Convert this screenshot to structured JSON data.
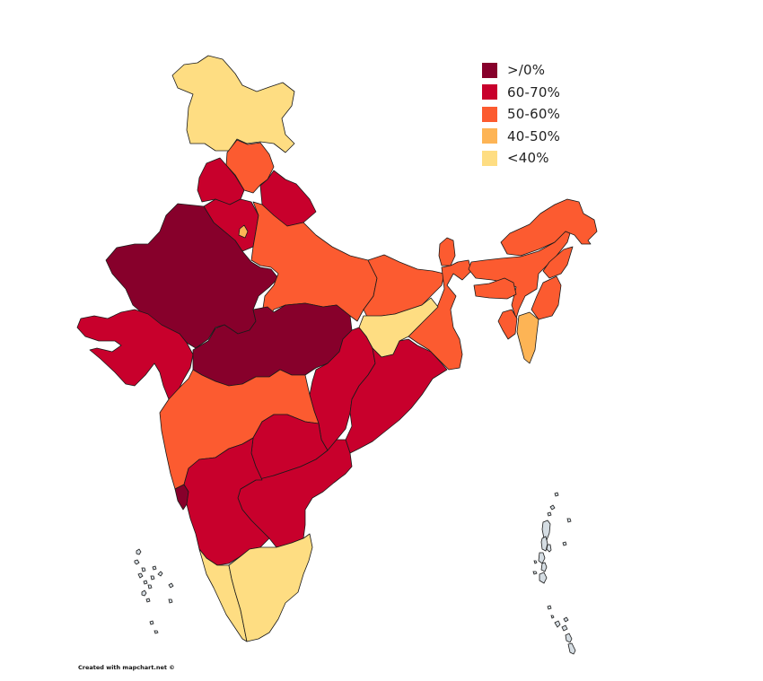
{
  "map": {
    "title": "",
    "colors": {
      "gt70": "#87002b",
      "60_70": "#c8002c",
      "50_60": "#fc5b30",
      "40_50": "#fdb455",
      "lt40": "#fedd82",
      "islands": "#d5dde3"
    },
    "legend": [
      {
        "key": "gt70",
        "label": ">/0%",
        "color": "#87002b"
      },
      {
        "key": "60_70",
        "label": "60-70%",
        "color": "#c8002c"
      },
      {
        "key": "50_60",
        "label": "50-60%",
        "color": "#fc5b30"
      },
      {
        "key": "40_50",
        "label": "40-50%",
        "color": "#fdb455"
      },
      {
        "key": "lt40",
        "label": "<40%",
        "color": "#fedd82"
      }
    ],
    "regions": [
      {
        "name": "Jammu & Kashmir",
        "bucket": "lt40"
      },
      {
        "name": "Himachal Pradesh",
        "bucket": "50_60"
      },
      {
        "name": "Punjab",
        "bucket": "60_70"
      },
      {
        "name": "Uttarakhand",
        "bucket": "60_70"
      },
      {
        "name": "Haryana",
        "bucket": "60_70"
      },
      {
        "name": "Delhi",
        "bucket": "40_50"
      },
      {
        "name": "Rajasthan",
        "bucket": "gt70"
      },
      {
        "name": "Uttar Pradesh",
        "bucket": "50_60"
      },
      {
        "name": "Bihar",
        "bucket": "50_60"
      },
      {
        "name": "Sikkim",
        "bucket": "50_60"
      },
      {
        "name": "Arunachal Pradesh",
        "bucket": "50_60"
      },
      {
        "name": "Assam",
        "bucket": "lt40"
      },
      {
        "name": "Meghalaya",
        "bucket": "50_60"
      },
      {
        "name": "Nagaland",
        "bucket": "50_60"
      },
      {
        "name": "Manipur",
        "bucket": "50_60"
      },
      {
        "name": "Mizoram",
        "bucket": "50_60"
      },
      {
        "name": "Tripura",
        "bucket": "50_60"
      },
      {
        "name": "West Bengal",
        "bucket": "40_50"
      },
      {
        "name": "Jharkhand",
        "bucket": "50_60"
      },
      {
        "name": "Gujarat",
        "bucket": "60_70"
      },
      {
        "name": "Madhya Pradesh",
        "bucket": "gt70"
      },
      {
        "name": "Chhattisgarh",
        "bucket": "60_70"
      },
      {
        "name": "Odisha",
        "bucket": "60_70"
      },
      {
        "name": "Maharashtra",
        "bucket": "50_60"
      },
      {
        "name": "Telangana",
        "bucket": "60_70"
      },
      {
        "name": "Andhra Pradesh",
        "bucket": "60_70"
      },
      {
        "name": "Goa",
        "bucket": "gt70"
      },
      {
        "name": "Karnataka",
        "bucket": "60_70"
      },
      {
        "name": "Kerala",
        "bucket": "lt40"
      },
      {
        "name": "Tamil Nadu",
        "bucket": "lt40"
      },
      {
        "name": "Lakshadweep",
        "bucket": "none"
      },
      {
        "name": "Andaman & Nicobar Islands",
        "bucket": "none"
      }
    ]
  },
  "footer": {
    "credit": "Created with mapchart.net ©"
  }
}
